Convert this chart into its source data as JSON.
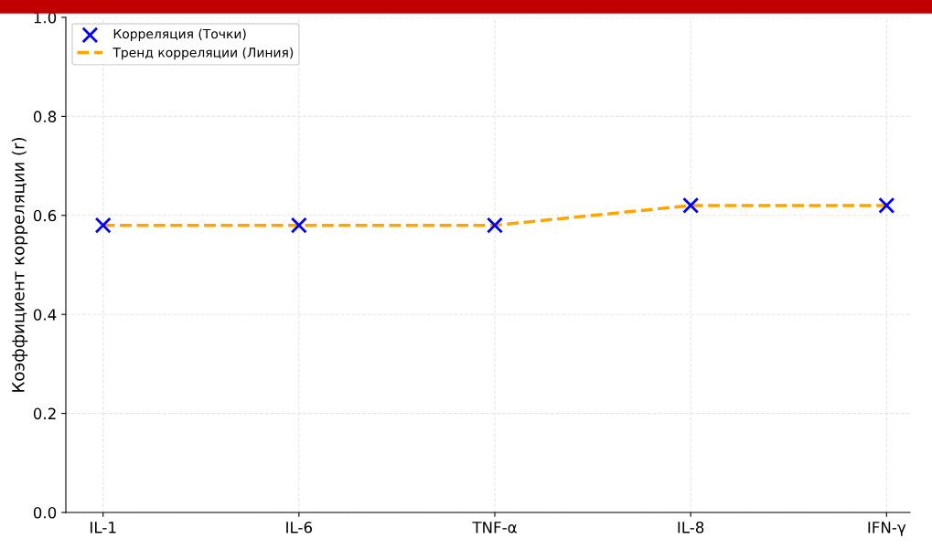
{
  "chart_data": {
    "type": "line",
    "ylabel": "Коэффициент корреляции (r)",
    "categories": [
      "IL-1",
      "IL-6",
      "TNF-α",
      "IL-8",
      "IFN-γ"
    ],
    "series": [
      {
        "name": "Корреляция (Точки)",
        "type": "scatter",
        "color": "#0000ff",
        "marker": "cross",
        "values": [
          0.58,
          0.58,
          0.58,
          0.62,
          0.62
        ]
      },
      {
        "name": "Тренд корреляции (Линия)",
        "color": "#ffa500",
        "line_style": "dashed",
        "marker": "none",
        "values": [
          0.58,
          0.58,
          0.58,
          0.62,
          0.62
        ]
      }
    ],
    "ylim": [
      0,
      1.0
    ],
    "yticks": [
      {
        "value": 0,
        "label": "0.0"
      },
      0.2,
      0.4,
      0.6,
      0.8,
      {
        "value": 1.0,
        "label": "1.0"
      }
    ],
    "grid": true,
    "legend": "top left"
  }
}
